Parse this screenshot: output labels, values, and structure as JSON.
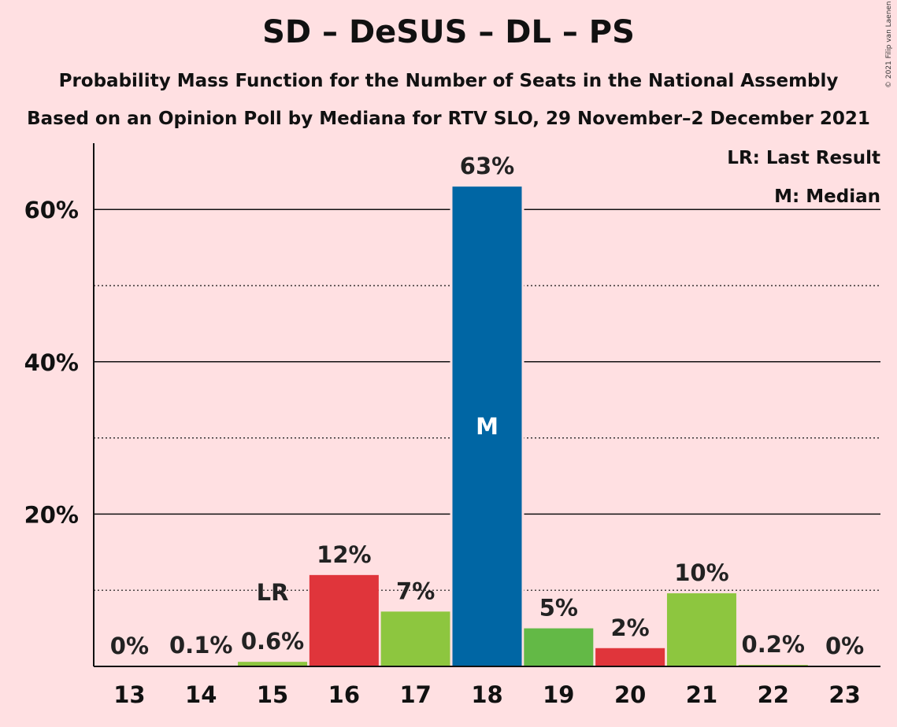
{
  "title": "SD – DeSUS – DL – PS",
  "subtitle": "Probability Mass Function for the Number of Seats in the National Assembly",
  "subtitle2": "Based on an Opinion Poll by Mediana for RTV SLO, 29 November–2 December 2021",
  "copyright": "© 2021 Filip van Laenen",
  "legend": {
    "last_result": "LR: Last Result",
    "median": "M: Median"
  },
  "chart_data": {
    "type": "bar",
    "categories": [
      "13",
      "14",
      "15",
      "16",
      "17",
      "18",
      "19",
      "20",
      "21",
      "22",
      "23"
    ],
    "values": [
      0,
      0.1,
      0.6,
      12,
      7.2,
      63,
      5,
      2.4,
      9.6,
      0.2,
      0
    ],
    "data_labels": [
      "0%",
      "0.1%",
      "0.6%",
      "12%",
      "7%",
      "63%",
      "5%",
      "2%",
      "10%",
      "0.2%",
      "0%"
    ],
    "bar_colors": [
      "#8DC63F",
      "#8DC63F",
      "#8DC63F",
      "#E0353B",
      "#8DC63F",
      "#0066A4",
      "#63B946",
      "#E0353B",
      "#8DC63F",
      "#8DC63F",
      "#8DC63F"
    ],
    "ylim": [
      0,
      68
    ],
    "yticks": [
      20,
      40,
      60
    ],
    "ytick_labels": [
      "20%",
      "40%",
      "60%"
    ],
    "minor_gridlines": [
      10,
      30,
      50
    ],
    "last_result": {
      "category": "15",
      "label": "LR"
    },
    "median": {
      "category": "18",
      "label": "M"
    },
    "legend_position": "top-right"
  }
}
